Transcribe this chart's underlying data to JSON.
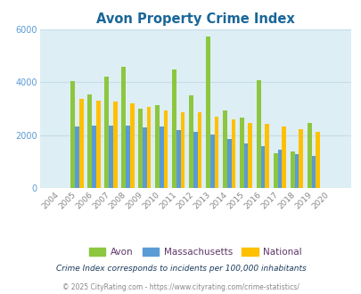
{
  "title": "Avon Property Crime Index",
  "title_color": "#1a6699",
  "years": [
    2004,
    2005,
    2006,
    2007,
    2008,
    2009,
    2010,
    2011,
    2012,
    2013,
    2014,
    2015,
    2016,
    2017,
    2018,
    2019,
    2020
  ],
  "avon": [
    0,
    4050,
    3550,
    4200,
    4580,
    3020,
    3150,
    4480,
    3520,
    5720,
    2920,
    2680,
    4080,
    1310,
    1390,
    2450,
    0
  ],
  "massachusetts": [
    0,
    2330,
    2360,
    2370,
    2360,
    2290,
    2330,
    2210,
    2140,
    2030,
    1870,
    1690,
    1580,
    1460,
    1290,
    1230,
    0
  ],
  "national": [
    0,
    3390,
    3290,
    3270,
    3190,
    3080,
    2950,
    2870,
    2860,
    2700,
    2600,
    2480,
    2430,
    2320,
    2220,
    2120,
    0
  ],
  "avon_color": "#8dc63f",
  "mass_color": "#5b9bd5",
  "national_color": "#ffc000",
  "axis_bg": "#ddeef5",
  "ylim": [
    0,
    6000
  ],
  "yticks": [
    0,
    2000,
    4000,
    6000
  ],
  "legend_labels": [
    "Avon",
    "Massachusetts",
    "National"
  ],
  "legend_label_color": "#5c3566",
  "footnote1": "Crime Index corresponds to incidents per 100,000 inhabitants",
  "footnote2": "© 2025 CityRating.com - https://www.cityrating.com/crime-statistics/",
  "footnote1_color": "#1a3a5c",
  "footnote2_color": "#888888",
  "bar_width": 0.25,
  "grid_color": "#c8dde8",
  "ytick_color": "#5b9bd5"
}
